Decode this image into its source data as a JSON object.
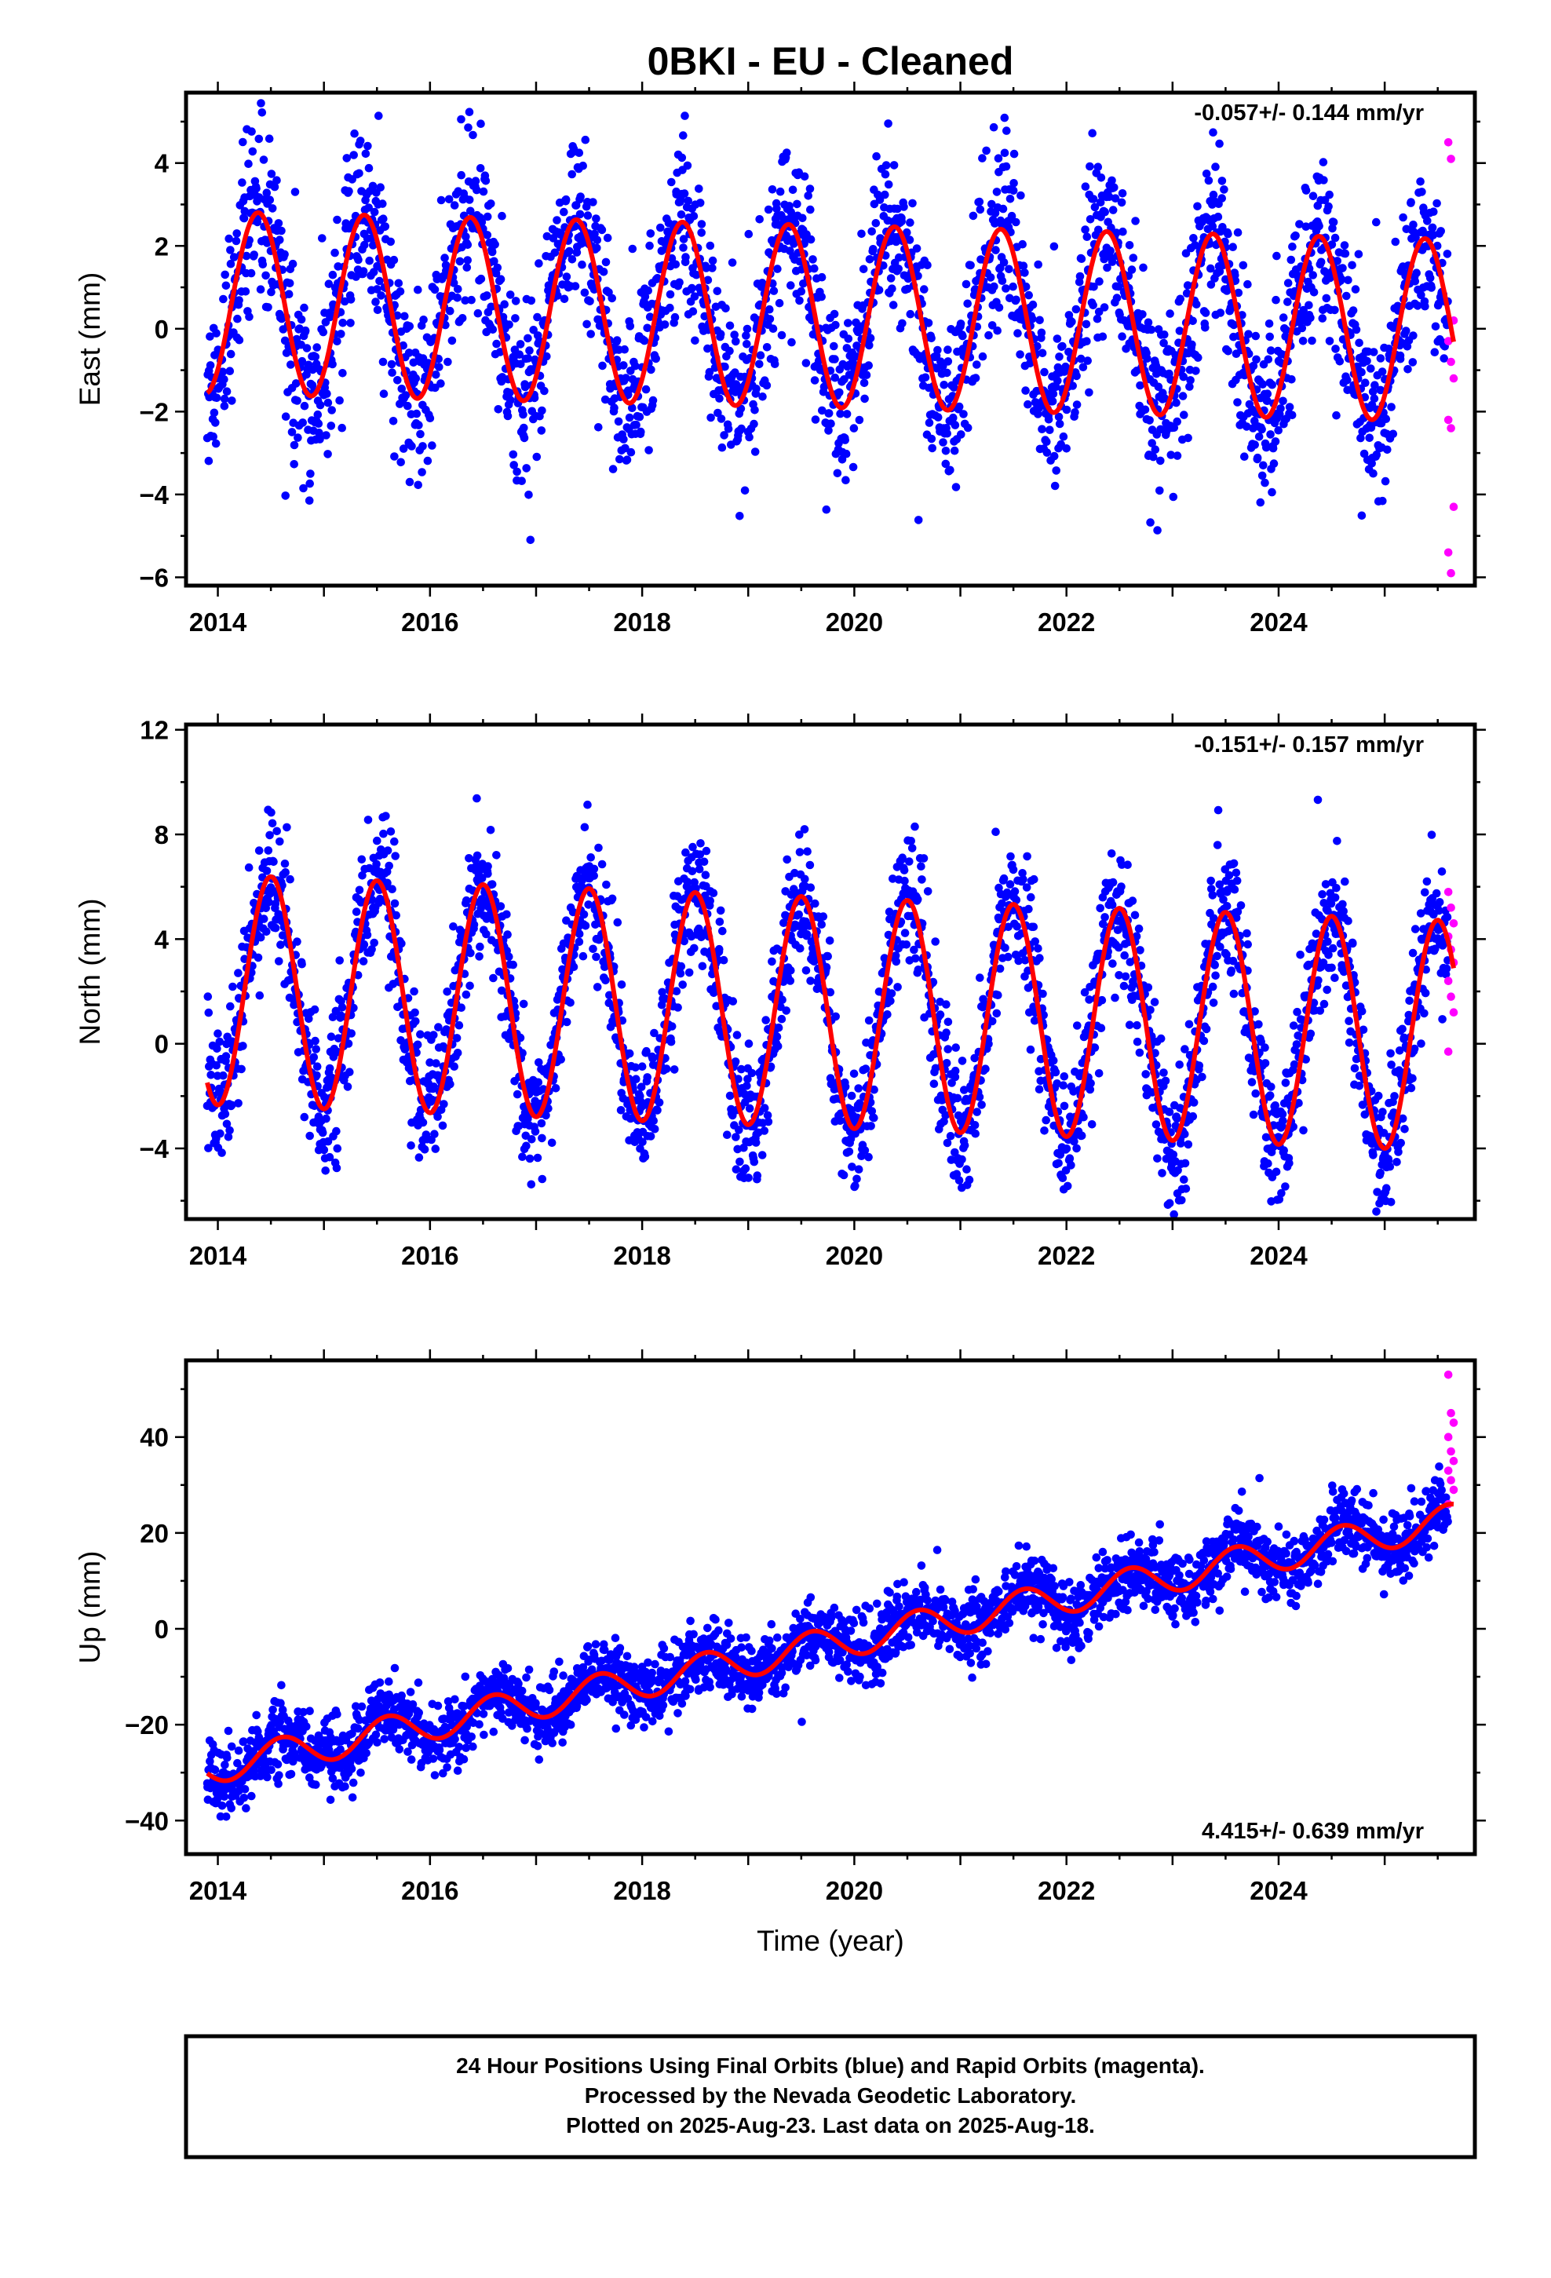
{
  "title": "0BKI  - EU - Cleaned",
  "colors": {
    "final_orbits": "#0000ff",
    "rapid_orbits": "#ff00ff",
    "model": "#ff0000",
    "frame": "#000000"
  },
  "chart_data": [
    {
      "type": "scatter",
      "ylabel": "East (mm)",
      "xlim": [
        2013.7,
        2025.85
      ],
      "ylim": [
        -6.2,
        5.7
      ],
      "x_ticks": [
        2014,
        2016,
        2018,
        2020,
        2022,
        2024
      ],
      "y_ticks": [
        4,
        2,
        0,
        -2,
        -4,
        -6
      ],
      "rate_text": "-0.057+/- 0.144 mm/yr",
      "rate_position": "top-right",
      "model": {
        "offset": 0.3,
        "trend": -0.057,
        "amplitude": 2.2,
        "peak_phase": 0.38,
        "ref_year": 2019.7
      },
      "scatter_spread": 1.05,
      "data_range": {
        "final": [
          2013.9,
          2025.6
        ],
        "rapid": [
          2025.6,
          2025.65
        ]
      },
      "rapid_values": [
        4.5,
        4.1,
        0.2,
        -0.3,
        -0.8,
        -1.2,
        -2.2,
        -2.4,
        -4.3,
        -5.4,
        -5.9
      ]
    },
    {
      "type": "scatter",
      "ylabel": "North (mm)",
      "xlim": [
        2013.7,
        2025.85
      ],
      "ylim": [
        -6.7,
        12.2
      ],
      "x_ticks": [
        2014,
        2016,
        2018,
        2020,
        2022,
        2024
      ],
      "y_ticks": [
        12,
        8,
        4,
        0,
        -4
      ],
      "rate_text": "-0.151+/- 0.157 mm/yr",
      "rate_position": "top-right",
      "model": {
        "offset": 1.2,
        "trend": -0.151,
        "amplitude": 4.4,
        "peak_phase": 0.5,
        "ref_year": 2019.7
      },
      "scatter_spread": 1.3,
      "data_range": {
        "final": [
          2013.9,
          2025.6
        ],
        "rapid": [
          2025.6,
          2025.65
        ]
      },
      "rapid_values": [
        5.8,
        5.2,
        4.6,
        4.1,
        3.6,
        3.1,
        2.4,
        1.8,
        1.2,
        -0.3
      ]
    },
    {
      "type": "scatter",
      "ylabel": "Up (mm)",
      "xlabel": "Time (year)",
      "xlim": [
        2013.7,
        2025.85
      ],
      "ylim": [
        -47,
        56
      ],
      "x_ticks": [
        2014,
        2016,
        2018,
        2020,
        2022,
        2024
      ],
      "y_ticks": [
        40,
        20,
        0,
        -20,
        -40
      ],
      "rate_text": "4.415+/- 0.639 mm/yr",
      "rate_position": "bottom-right",
      "model": {
        "offset": -3.5,
        "trend": 4.415,
        "amplitude": 3.4,
        "peak_phase": 0.6,
        "ref_year": 2019.7
      },
      "scatter_spread": 3.6,
      "data_range": {
        "final": [
          2013.9,
          2025.6
        ],
        "rapid": [
          2025.6,
          2025.65
        ]
      },
      "rapid_values": [
        53,
        45,
        43,
        40,
        37,
        35,
        33,
        31,
        29,
        26
      ]
    }
  ],
  "footer": {
    "line1": "24 Hour Positions Using Final Orbits (blue) and Rapid Orbits (magenta).",
    "line2": "Processed by the Nevada Geodetic Laboratory.",
    "line3": "Plotted on 2025-Aug-23. Last data on 2025-Aug-18."
  }
}
